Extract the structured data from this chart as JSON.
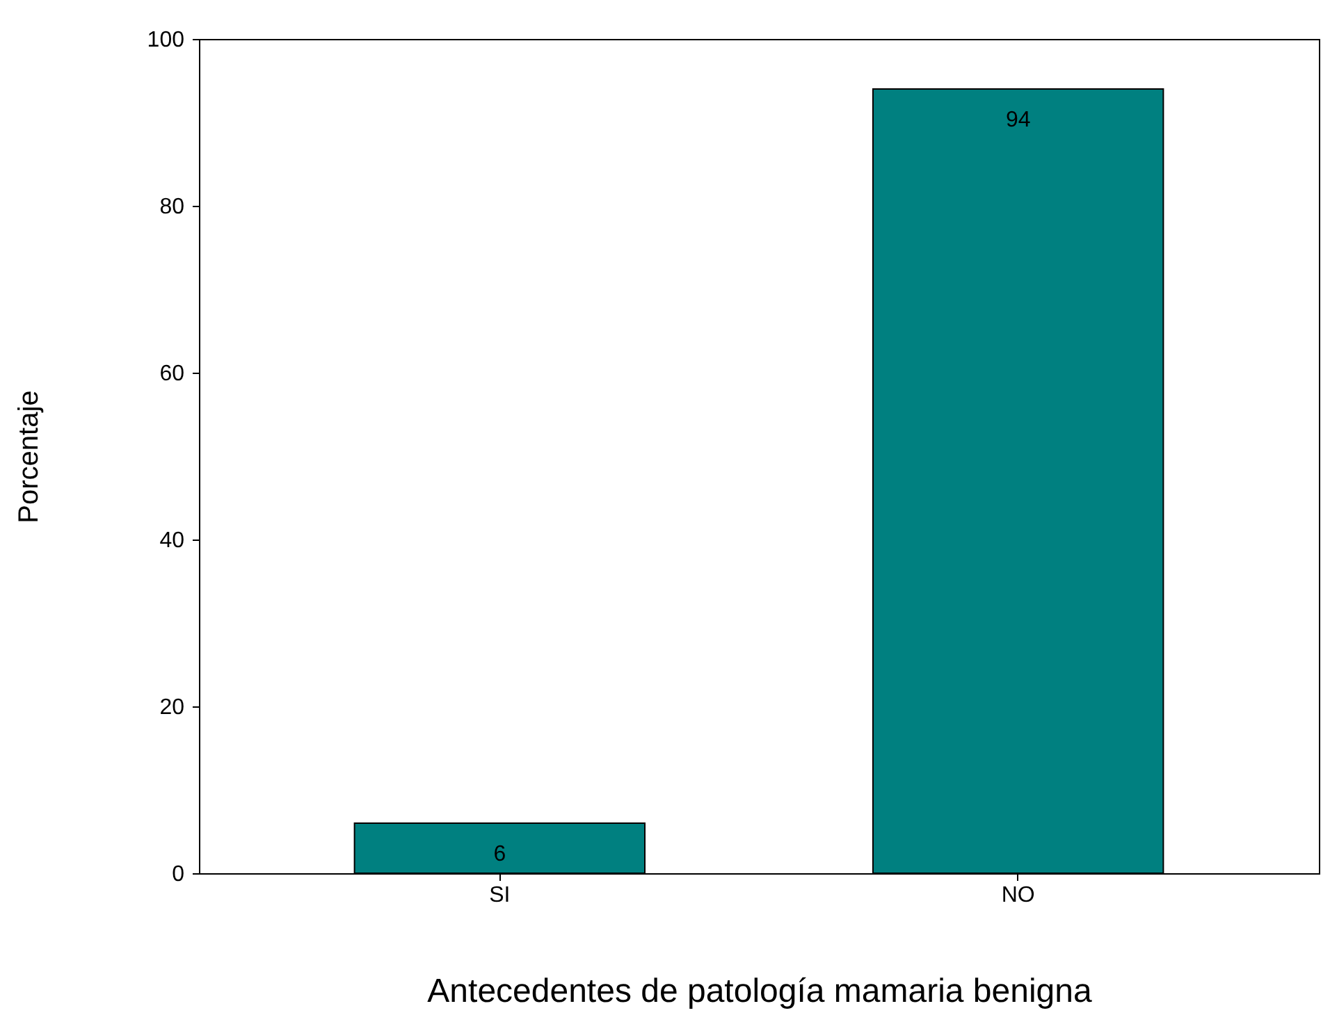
{
  "chart_data": {
    "type": "bar",
    "xlabel": "Antecedentes de patología mamaria  benigna",
    "ylabel": "Porcentaje",
    "categories": [
      "SI",
      "NO"
    ],
    "values": [
      6,
      94
    ],
    "color": "#008080",
    "ylim": [
      0,
      100
    ],
    "yticks": [
      0,
      20,
      40,
      60,
      80,
      100
    ],
    "grid": false,
    "data_labels": true
  }
}
